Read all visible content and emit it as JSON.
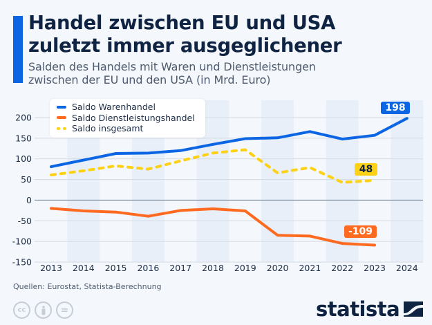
{
  "header": {
    "title_line1": "Handel zwischen EU und USA",
    "title_line2": "zuletzt immer ausgeglichener",
    "subtitle_line1": "Salden des Handels mit Waren und Dienstleistungen",
    "subtitle_line2": "zwischen der EU und den USA (in Mrd. Euro)"
  },
  "colors": {
    "accent": "#0c66e4",
    "waren": "#0c66e4",
    "dienst": "#fd6a20",
    "insgesamt": "#fcd116",
    "band": "#e8eff8",
    "grid": "#d5dbe3",
    "zero": "#7a8699",
    "text": "#0f2342"
  },
  "chart_data": {
    "type": "line",
    "title": "Handel zwischen EU und USA zuletzt immer ausgeglichener",
    "subtitle": "Salden des Handels mit Waren und Dienstleistungen zwischen der EU und den USA (in Mrd. Euro)",
    "xlabel": "",
    "ylabel": "",
    "x": [
      "2013",
      "2014",
      "2015",
      "2016",
      "2017",
      "2018",
      "2019",
      "2020",
      "2021",
      "2022",
      "2023",
      "2024"
    ],
    "ylim": [
      -150,
      200
    ],
    "yticks": [
      200,
      150,
      100,
      50,
      0,
      -50,
      -100,
      -150
    ],
    "ytick_labels": [
      "200",
      "150",
      "100",
      "50",
      "0",
      "-50",
      "-100",
      "-150"
    ],
    "grid": true,
    "legend_position": "top-left",
    "series": [
      {
        "name": "Saldo Warenhandel",
        "style": "solid",
        "color": "#0c66e4",
        "values": [
          81,
          97,
          113,
          114,
          120,
          135,
          149,
          151,
          166,
          148,
          157,
          198
        ]
      },
      {
        "name": "Saldo Dienstleistungshandel",
        "style": "solid",
        "color": "#fd6a20",
        "values": [
          -20,
          -26,
          -29,
          -39,
          -25,
          -21,
          -26,
          -85,
          -87,
          -105,
          -109,
          null
        ]
      },
      {
        "name": "Saldo insgesamt",
        "style": "dashed",
        "color": "#fcd116",
        "values": [
          61,
          71,
          83,
          75,
          95,
          114,
          122,
          66,
          79,
          43,
          48,
          null
        ]
      }
    ],
    "annotations": [
      {
        "series": "Saldo Warenhandel",
        "x": "2024",
        "label": "198"
      },
      {
        "series": "Saldo insgesamt",
        "x": "2023",
        "label": "48"
      },
      {
        "series": "Saldo Dienstleistungshandel",
        "x": "2023",
        "label": "-109"
      }
    ]
  },
  "footer": {
    "source": "Quellen: Eurostat, Statista-Berechnung",
    "license_icons": [
      "cc-icon",
      "by-person-icon",
      "nd-equals-icon"
    ],
    "cc_label": "cc",
    "nd_label": "=",
    "logo_text": "statista"
  }
}
